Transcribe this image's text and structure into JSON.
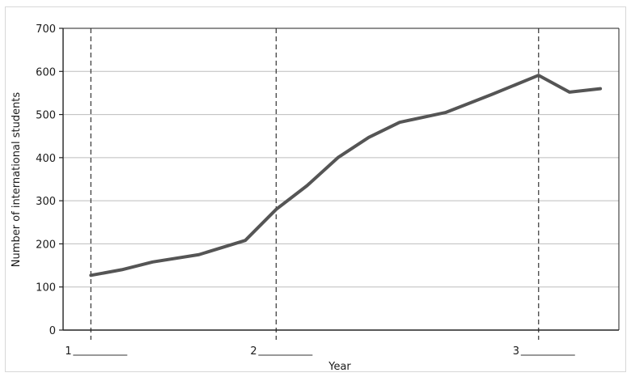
{
  "chart_data": {
    "type": "line",
    "ylabel": "Number of international students",
    "xlabel": "Year",
    "ylim": [
      0,
      700
    ],
    "yticks": [
      0,
      100,
      200,
      300,
      400,
      500,
      600,
      700
    ],
    "grid": true,
    "line_color": "#555555",
    "markers": [
      {
        "label": "1",
        "x": 0.0
      },
      {
        "label": "2",
        "x": 6.0
      },
      {
        "label": "3",
        "x": 14.5
      }
    ],
    "series": [
      {
        "x": [
          0,
          1,
          2,
          3.5,
          5,
          6,
          7,
          8,
          9,
          10,
          11.5,
          13,
          14.5,
          15.5,
          16.5
        ],
        "values": [
          127,
          140,
          158,
          175,
          208,
          280,
          335,
          400,
          447,
          482,
          505,
          547,
          591,
          552,
          560
        ]
      }
    ]
  }
}
